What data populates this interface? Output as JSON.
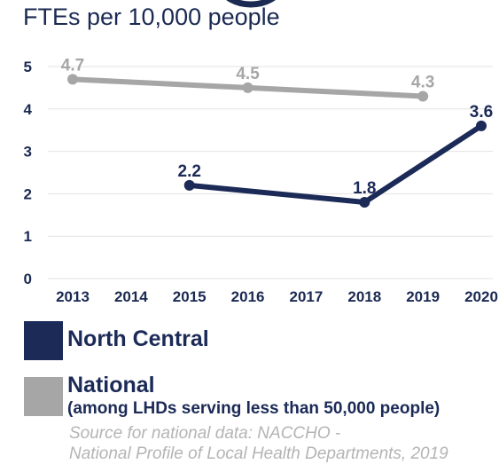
{
  "colors": {
    "north_central": "#1b2a57",
    "national": "#a6a6a6",
    "ink": "#1b2a52",
    "grid": "#e3e3e3"
  },
  "chart_data": {
    "type": "line",
    "subtitle": "FTEs per 10,000 people",
    "x": [
      "2013",
      "2014",
      "2015",
      "2016",
      "2017",
      "2018",
      "2019",
      "2020"
    ],
    "ylim": [
      0,
      5
    ],
    "yticks": [
      "0",
      "1",
      "2",
      "3",
      "4",
      "5"
    ],
    "grid": true,
    "legend_placement": "bottom",
    "series": [
      {
        "name": "North Central",
        "color": "#1b2a57",
        "points": [
          {
            "x": "2015",
            "y": 2.2,
            "label": "2.2"
          },
          {
            "x": "2018",
            "y": 1.8,
            "label": "1.8"
          },
          {
            "x": "2020",
            "y": 3.6,
            "label": "3.6"
          }
        ]
      },
      {
        "name": "National",
        "color": "#a6a6a6",
        "points": [
          {
            "x": "2013",
            "y": 4.7,
            "label": "4.7"
          },
          {
            "x": "2016",
            "y": 4.5,
            "label": "4.5"
          },
          {
            "x": "2019",
            "y": 4.3,
            "label": "4.3"
          }
        ]
      }
    ]
  },
  "legend": {
    "north_central": {
      "label": "North Central"
    },
    "national": {
      "label": "National",
      "sublabel": "(among LHDs serving less than 50,000 people)"
    }
  },
  "source": {
    "line1": "Source for national data: NACCHO -",
    "line2": "National Profile of Local Health Departments, 2019"
  }
}
